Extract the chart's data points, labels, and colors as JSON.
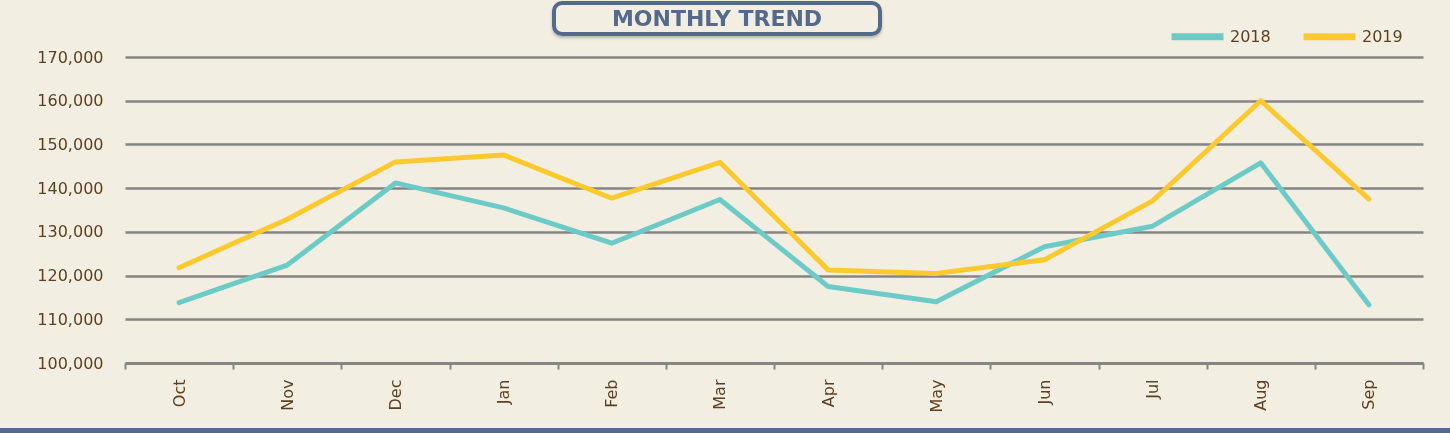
{
  "chart_data": {
    "type": "line",
    "title": "MONTHLY TREND",
    "categories": [
      "Oct",
      "Nov",
      "Dec",
      "Jan",
      "Feb",
      "Mar",
      "Apr",
      "May",
      "Jun",
      "Jul",
      "Aug",
      "Sep"
    ],
    "series": [
      {
        "name": "2018",
        "color": "#6dcbc7",
        "values": [
          113800,
          122400,
          141200,
          135500,
          127400,
          137400,
          117500,
          114000,
          126600,
          131300,
          145800,
          113300
        ]
      },
      {
        "name": "2019",
        "color": "#fec92f",
        "values": [
          121800,
          132900,
          146000,
          147600,
          137700,
          145900,
          121300,
          120500,
          123600,
          137100,
          160000,
          137500
        ]
      }
    ],
    "ylim": [
      100000,
      170000
    ],
    "yticks": [
      {
        "value": 100000,
        "label": "100,000"
      },
      {
        "value": 110000,
        "label": "110,000"
      },
      {
        "value": 120000,
        "label": "120,000"
      },
      {
        "value": 130000,
        "label": "130,000"
      },
      {
        "value": 140000,
        "label": "140,000"
      },
      {
        "value": 150000,
        "label": "150,000"
      },
      {
        "value": 160000,
        "label": "160,000"
      },
      {
        "value": 170000,
        "label": "170,000"
      }
    ],
    "grid": "y",
    "legend": "top right",
    "line_style": "solid"
  }
}
